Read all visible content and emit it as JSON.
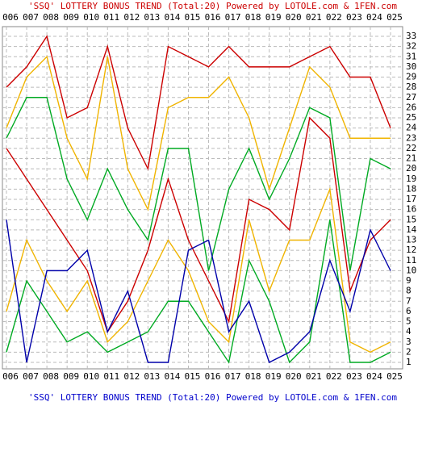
{
  "chart_data": {
    "type": "line",
    "title": "'SSQ' LOTTERY BONUS TREND (Total:20)  Powered by LOTOLE.com & 1FEN.com",
    "footer": "'SSQ' LOTTERY BONUS TREND (Total:20)  Powered by LOTOLE.com & 1FEN.com",
    "title_color": "#cc0000",
    "footer_color": "#0000cc",
    "categories": [
      "006",
      "007",
      "008",
      "009",
      "010",
      "011",
      "012",
      "013",
      "014",
      "015",
      "016",
      "017",
      "018",
      "019",
      "020",
      "021",
      "022",
      "023",
      "024",
      "025"
    ],
    "series": [
      {
        "color": "#cc0000",
        "values": [
          28,
          30,
          33,
          25,
          26,
          32,
          24,
          20,
          32,
          31,
          30,
          32,
          30,
          30,
          30,
          31,
          32,
          29,
          29,
          24
        ]
      },
      {
        "color": "#f0b400",
        "values": [
          24,
          29,
          31,
          23,
          19,
          31,
          20,
          16,
          26,
          27,
          27,
          29,
          25,
          18,
          24,
          30,
          28,
          23,
          23,
          23
        ]
      },
      {
        "color": "#00aa22",
        "values": [
          23,
          27,
          27,
          19,
          15,
          20,
          16,
          13,
          22,
          22,
          10,
          18,
          22,
          17,
          21,
          26,
          25,
          10,
          21,
          20
        ]
      },
      {
        "color": "#cc0000",
        "values": [
          22,
          19,
          16,
          13,
          10,
          4,
          7,
          12,
          19,
          13,
          9,
          5,
          17,
          16,
          14,
          25,
          23,
          8,
          13,
          15
        ]
      },
      {
        "color": "#f0b400",
        "values": [
          6,
          13,
          9,
          6,
          9,
          3,
          5,
          9,
          13,
          10,
          5,
          3,
          15,
          8,
          13,
          13,
          18,
          3,
          2,
          3
        ]
      },
      {
        "color": "#00aa22",
        "values": [
          2,
          9,
          6,
          3,
          4,
          2,
          3,
          4,
          7,
          7,
          4,
          1,
          11,
          7,
          1,
          3,
          15,
          1,
          1,
          2
        ]
      },
      {
        "color": "#0000aa",
        "values": [
          15,
          1,
          10,
          10,
          12,
          4,
          8,
          1,
          1,
          12,
          13,
          4,
          7,
          1,
          2,
          4,
          11,
          6,
          14,
          10
        ]
      }
    ],
    "ylim": [
      1,
      33
    ],
    "yticks": [
      1,
      2,
      3,
      4,
      5,
      6,
      7,
      8,
      9,
      10,
      11,
      12,
      13,
      14,
      15,
      16,
      17,
      18,
      19,
      20,
      21,
      22,
      23,
      24,
      25,
      26,
      27,
      28,
      29,
      30,
      31,
      32,
      33
    ],
    "grid": true
  }
}
